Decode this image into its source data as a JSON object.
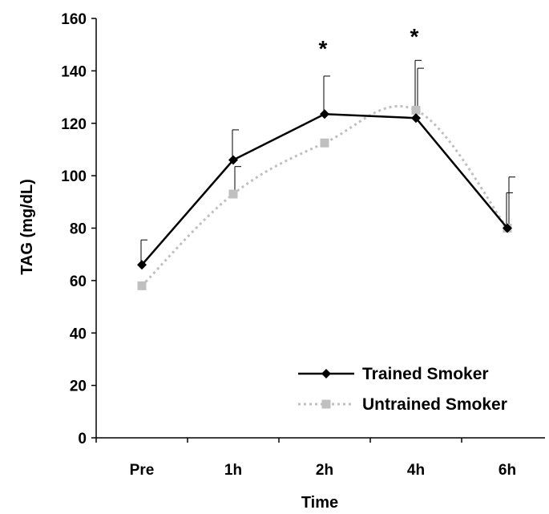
{
  "chart_data": {
    "type": "line",
    "title": "",
    "xlabel": "Time",
    "ylabel": "TAG (mg/dL)",
    "categories": [
      "Pre",
      "1h",
      "2h",
      "4h",
      "6h"
    ],
    "ylim": [
      0,
      160
    ],
    "yticks": [
      "0",
      "20",
      "40",
      "60",
      "80",
      "100",
      "120",
      "140",
      "160"
    ],
    "grid": false,
    "legend_position": "bottom-right",
    "series": [
      {
        "name": "Trained Smoker",
        "values": [
          66,
          106,
          123.5,
          122,
          80
        ],
        "error": [
          9.5,
          11.5,
          14.5,
          22,
          13.5
        ],
        "color": "#000000",
        "marker": "diamond",
        "line_style": "solid"
      },
      {
        "name": "Untrained Smoker",
        "values": [
          58,
          93,
          112.5,
          125,
          80
        ],
        "error": [
          0,
          10.5,
          0,
          16,
          19.5
        ],
        "color": "#c0c0c0",
        "marker": "square",
        "line_style": "dotted"
      }
    ],
    "annotations": [
      {
        "text": "*",
        "category": "2h"
      },
      {
        "text": "*",
        "category": "4h"
      }
    ]
  }
}
